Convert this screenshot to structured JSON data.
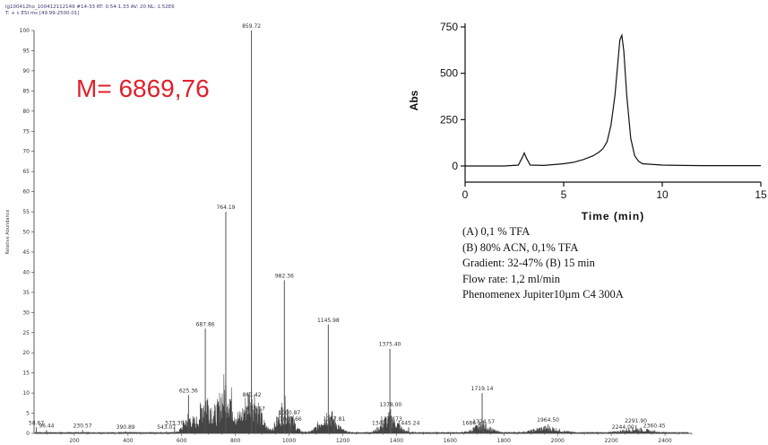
{
  "header": {
    "line1": "lg100412ho_100412112149 #14-33   RT: 0.54-1.33   AV: 20   NL: 1.52E6",
    "line2": "T: + c ESI ms [49.99-2500.01]"
  },
  "mass_label": "M= 6869,76",
  "conditions": [
    "(A)   0,1 % TFA",
    "(B)   80% ACN, 0,1% TFA",
    "Gradient: 32-47%  (B) 15 min",
    "Flow rate: 1,2 ml/min",
    "Phenomenex  Jupiter10µm C4 300A"
  ],
  "chart_data": [
    {
      "type": "bar",
      "title": "",
      "xlabel": "",
      "ylabel": "Relative Abundance",
      "xlim": [
        50,
        2500
      ],
      "ylim": [
        0,
        100
      ],
      "x_ticks": [
        200,
        400,
        600,
        800,
        1000,
        1200,
        1400,
        1600,
        1800,
        2000,
        2200,
        2400
      ],
      "y_ticks": [
        0,
        5,
        10,
        15,
        20,
        25,
        30,
        35,
        40,
        45,
        50,
        55,
        60,
        65,
        70,
        75,
        80,
        85,
        90,
        95,
        100
      ],
      "peaks": [
        {
          "mz": 58.67,
          "label": "58.67",
          "rel": 1.5
        },
        {
          "mz": 96.44,
          "label": "96.44",
          "rel": 0.8
        },
        {
          "mz": 230.57,
          "label": "230.57",
          "rel": 0.8
        },
        {
          "mz": 390.89,
          "label": "390.89",
          "rel": 0.5
        },
        {
          "mz": 543.07,
          "label": "543.07",
          "rel": 0.5
        },
        {
          "mz": 573.39,
          "label": "573.39",
          "rel": 1.5
        },
        {
          "mz": 625.36,
          "label": "625.36",
          "rel": 9.5
        },
        {
          "mz": 687.86,
          "label": "687.86",
          "rel": 26
        },
        {
          "mz": 764.19,
          "label": "764.19",
          "rel": 55
        },
        {
          "mz": 859.72,
          "label": "859.72",
          "rel": 100
        },
        {
          "mz": 861.42,
          "label": "861.42",
          "rel": 8.5
        },
        {
          "mz": 875.57,
          "label": "875.57",
          "rel": 5
        },
        {
          "mz": 982.36,
          "label": "982.36",
          "rel": 38
        },
        {
          "mz": 1000.87,
          "label": "1000.87",
          "rel": 4
        },
        {
          "mz": 1005.66,
          "label": "1005.66",
          "rel": 2.5
        },
        {
          "mz": 1145.98,
          "label": "1145.98",
          "rel": 27
        },
        {
          "mz": 1167.81,
          "label": "1167.81",
          "rel": 2.5
        },
        {
          "mz": 1349.76,
          "label": "1349.76",
          "rel": 1.5
        },
        {
          "mz": 1375.4,
          "label": "1375.40",
          "rel": 21
        },
        {
          "mz": 1378.0,
          "label": "1378.00",
          "rel": 6
        },
        {
          "mz": 1379.73,
          "label": "1379.73",
          "rel": 2.5
        },
        {
          "mz": 1445.24,
          "label": "1445.24",
          "rel": 1.5
        },
        {
          "mz": 1686.13,
          "label": "1686.13",
          "rel": 1.5
        },
        {
          "mz": 1719.14,
          "label": "1719.14",
          "rel": 10
        },
        {
          "mz": 1724.57,
          "label": "1724.57",
          "rel": 1.8
        },
        {
          "mz": 1964.5,
          "label": "1964.50",
          "rel": 2.2
        },
        {
          "mz": 2244.0,
          "label": "2244.00",
          "rel": 0.5
        },
        {
          "mz": 2291.9,
          "label": "2291.90",
          "rel": 2
        },
        {
          "mz": 2360.45,
          "label": "2360.45",
          "rel": 0.8
        }
      ]
    },
    {
      "type": "line",
      "title": "",
      "xlabel": "Time (min)",
      "ylabel": "Abs",
      "xlim": [
        0,
        15
      ],
      "ylim": [
        -50,
        750
      ],
      "x_ticks": [
        0,
        5,
        10,
        15
      ],
      "y_ticks": [
        0,
        250,
        500,
        750
      ],
      "series": [
        {
          "x": [
            0,
            2.0,
            2.7,
            2.9,
            3.0,
            3.1,
            3.3,
            4.0,
            5.0,
            5.5,
            6.0,
            6.5,
            6.8,
            7.0,
            7.2,
            7.4,
            7.6,
            7.75,
            7.85,
            7.95,
            8.05,
            8.2,
            8.4,
            8.6,
            8.8,
            9.0,
            10,
            11,
            12,
            15
          ],
          "y": [
            0,
            0,
            5,
            45,
            70,
            45,
            5,
            3,
            12,
            20,
            35,
            55,
            75,
            95,
            130,
            220,
            380,
            560,
            680,
            705,
            620,
            380,
            150,
            55,
            25,
            12,
            5,
            3,
            2,
            2
          ]
        }
      ]
    }
  ]
}
